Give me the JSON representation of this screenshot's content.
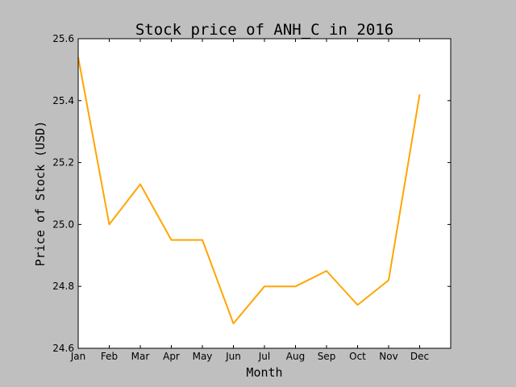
{
  "chart_data": {
    "type": "line",
    "title": "Stock price of ANH_C in 2016",
    "xlabel": "Month",
    "ylabel": "Price of Stock (USD)",
    "categories": [
      "Jan",
      "Feb",
      "Mar",
      "Apr",
      "May",
      "Jun",
      "Jul",
      "Aug",
      "Sep",
      "Oct",
      "Nov",
      "Dec"
    ],
    "x_padding_categories": 1,
    "series": [
      {
        "color": "#ffa500",
        "values": [
          25.54,
          25.0,
          25.13,
          24.95,
          24.95,
          24.68,
          24.8,
          24.8,
          24.85,
          24.74,
          24.82,
          25.42
        ]
      }
    ],
    "ylim": [
      24.6,
      25.6
    ],
    "yticks": [
      "24.6",
      "24.8",
      "25.0",
      "25.2",
      "25.4",
      "25.6"
    ],
    "grid": false,
    "background_color": "#bfbfbf",
    "plot_background_color": "#ffffff"
  }
}
